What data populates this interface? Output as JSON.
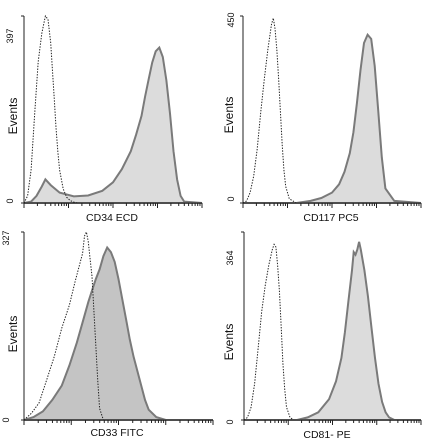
{
  "chart_data": [
    {
      "type": "area",
      "xlabel": "CD34 ECD",
      "ylabel": "Events",
      "ylim": [
        0,
        397
      ],
      "y_tick_labels": [
        "397",
        "0"
      ],
      "fill_color": "#dcdcdc",
      "series": [
        {
          "style": "dotted",
          "x": [
            0.0,
            0.02,
            0.04,
            0.06,
            0.08,
            0.1,
            0.12,
            0.135,
            0.15,
            0.16,
            0.17,
            0.18,
            0.19,
            0.2,
            0.22,
            0.24,
            0.26,
            0.28,
            0.3,
            0.33
          ],
          "values": [
            0,
            15,
            70,
            190,
            300,
            360,
            397,
            390,
            340,
            280,
            220,
            160,
            110,
            70,
            30,
            12,
            5,
            2,
            0,
            0
          ]
        },
        {
          "style": "filled",
          "x": [
            0.0,
            0.04,
            0.07,
            0.1,
            0.12,
            0.15,
            0.2,
            0.28,
            0.36,
            0.44,
            0.5,
            0.55,
            0.6,
            0.63,
            0.66,
            0.68,
            0.7,
            0.72,
            0.74,
            0.76,
            0.78,
            0.8,
            0.82,
            0.84,
            0.86,
            0.88,
            0.9,
            1.0
          ],
          "values": [
            0,
            3,
            15,
            35,
            50,
            38,
            22,
            14,
            16,
            26,
            44,
            72,
            110,
            145,
            185,
            225,
            262,
            298,
            322,
            330,
            310,
            260,
            190,
            110,
            50,
            15,
            3,
            0
          ]
        }
      ]
    },
    {
      "type": "area",
      "xlabel": "CD117 PC5",
      "ylabel": "Events",
      "ylim": [
        0,
        450
      ],
      "y_tick_labels": [
        "450",
        "0"
      ],
      "fill_color": "#dcdcdc",
      "series": [
        {
          "style": "dotted",
          "x": [
            0.0,
            0.02,
            0.04,
            0.06,
            0.08,
            0.1,
            0.12,
            0.14,
            0.16,
            0.17,
            0.18,
            0.19,
            0.2,
            0.21,
            0.22,
            0.23,
            0.24,
            0.26,
            0.3,
            0.33
          ],
          "values": [
            0,
            5,
            25,
            65,
            130,
            220,
            300,
            370,
            430,
            445,
            420,
            370,
            300,
            220,
            140,
            80,
            40,
            10,
            0,
            0
          ]
        },
        {
          "style": "filled",
          "x": [
            0.0,
            0.3,
            0.38,
            0.44,
            0.5,
            0.54,
            0.57,
            0.6,
            0.62,
            0.64,
            0.66,
            0.68,
            0.7,
            0.72,
            0.74,
            0.76,
            0.78,
            0.8,
            0.85,
            1.0
          ],
          "values": [
            0,
            0,
            5,
            12,
            25,
            45,
            75,
            120,
            170,
            240,
            320,
            385,
            405,
            395,
            330,
            220,
            110,
            35,
            5,
            0
          ]
        }
      ]
    },
    {
      "type": "area",
      "xlabel": "CD33  FITC",
      "ylabel": "Events",
      "ylim": [
        0,
        327
      ],
      "y_tick_labels": [
        "327",
        "0"
      ],
      "fill_color": "#c4c4c4",
      "series": [
        {
          "style": "filled",
          "x": [
            0.0,
            0.05,
            0.1,
            0.15,
            0.2,
            0.24,
            0.28,
            0.31,
            0.34,
            0.36,
            0.38,
            0.4,
            0.42,
            0.44,
            0.46,
            0.48,
            0.5,
            0.52,
            0.54,
            0.56,
            0.58,
            0.6,
            0.62,
            0.64,
            0.66,
            0.7,
            0.75,
            1.0
          ],
          "values": [
            0,
            5,
            15,
            35,
            60,
            95,
            135,
            170,
            205,
            225,
            245,
            262,
            285,
            300,
            292,
            275,
            245,
            210,
            175,
            140,
            110,
            85,
            60,
            35,
            18,
            5,
            0,
            0
          ]
        },
        {
          "style": "dotted",
          "x": [
            0.0,
            0.04,
            0.08,
            0.12,
            0.16,
            0.2,
            0.24,
            0.27,
            0.29,
            0.31,
            0.32,
            0.33,
            0.34,
            0.35,
            0.36,
            0.37,
            0.38,
            0.39,
            0.4,
            0.42,
            0.45,
            0.5
          ],
          "values": [
            0,
            12,
            30,
            70,
            110,
            160,
            200,
            240,
            265,
            290,
            320,
            327,
            310,
            280,
            250,
            190,
            130,
            70,
            20,
            0,
            0,
            0
          ]
        }
      ]
    },
    {
      "type": "area",
      "xlabel": "CD81- PE",
      "ylabel": "Events",
      "ylim": [
        0,
        364
      ],
      "y_tick_labels": [
        "364",
        "0"
      ],
      "fill_color": "#dcdcdc",
      "series": [
        {
          "style": "dotted",
          "x": [
            0.0,
            0.02,
            0.04,
            0.06,
            0.08,
            0.1,
            0.12,
            0.14,
            0.16,
            0.17,
            0.18,
            0.19,
            0.2,
            0.21,
            0.22,
            0.23,
            0.24,
            0.26,
            0.28,
            0.3,
            0.35
          ],
          "values": [
            0,
            5,
            25,
            70,
            140,
            210,
            260,
            300,
            330,
            340,
            335,
            300,
            250,
            180,
            110,
            60,
            25,
            5,
            0,
            0,
            0
          ]
        },
        {
          "style": "filled",
          "x": [
            0.0,
            0.3,
            0.36,
            0.42,
            0.48,
            0.52,
            0.55,
            0.57,
            0.59,
            0.61,
            0.62,
            0.63,
            0.64,
            0.65,
            0.66,
            0.68,
            0.7,
            0.72,
            0.74,
            0.76,
            0.78,
            0.8,
            0.82,
            0.85,
            1.0
          ],
          "values": [
            0,
            0,
            5,
            15,
            40,
            75,
            120,
            170,
            230,
            290,
            325,
            320,
            330,
            345,
            330,
            290,
            240,
            180,
            120,
            70,
            35,
            15,
            5,
            0,
            0
          ]
        }
      ]
    }
  ]
}
